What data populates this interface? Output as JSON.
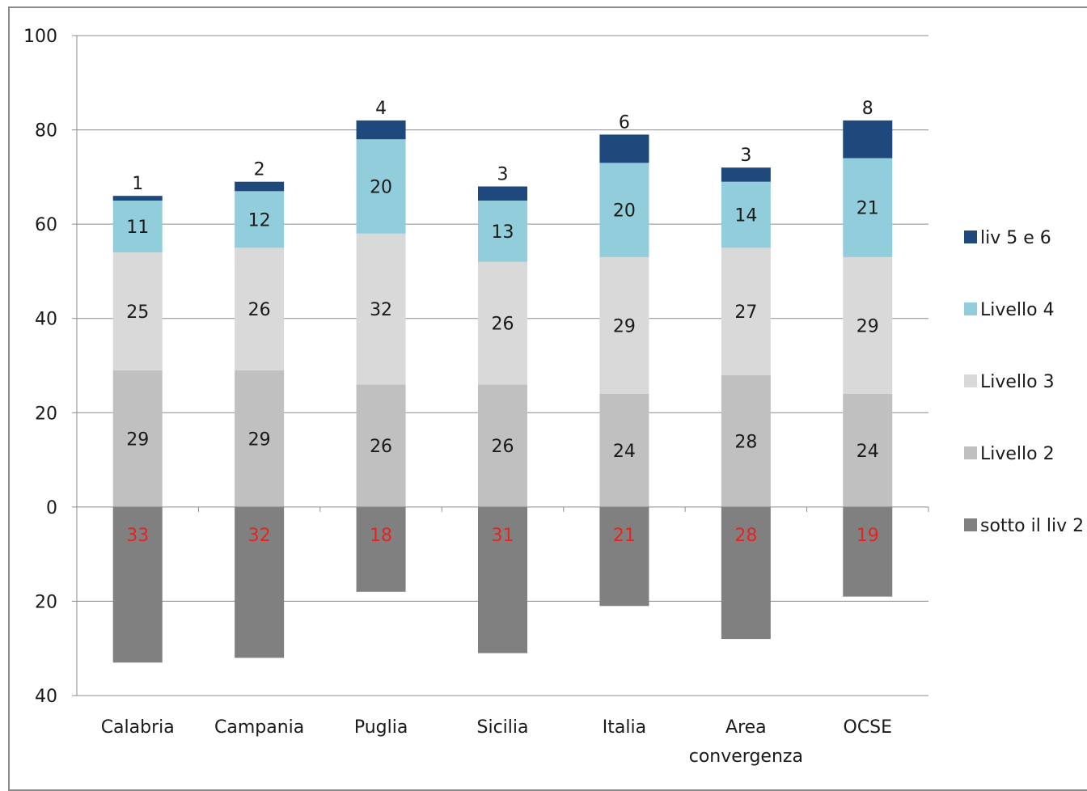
{
  "chart_data": {
    "type": "bar",
    "stacked": true,
    "categories": [
      "Calabria",
      "Campania",
      "Puglia",
      "Sicilia",
      "Italia",
      "Area convergenza",
      "OCSE"
    ],
    "category_lines": [
      [
        "Calabria"
      ],
      [
        "Campania"
      ],
      [
        "Puglia"
      ],
      [
        "Sicilia"
      ],
      [
        "Italia"
      ],
      [
        "Area",
        "convergenza"
      ],
      [
        "OCSE"
      ]
    ],
    "ylim": [
      -40,
      100
    ],
    "yticks": [
      {
        "value": 100,
        "label": "100"
      },
      {
        "value": 80,
        "label": "80"
      },
      {
        "value": 60,
        "label": "60"
      },
      {
        "value": 40,
        "label": "40"
      },
      {
        "value": 20,
        "label": "20"
      },
      {
        "value": 0,
        "label": "0"
      },
      {
        "value": -20,
        "label": "20"
      },
      {
        "value": -40,
        "label": "40"
      }
    ],
    "grid": true,
    "legend_position": "right",
    "series": [
      {
        "name": "sotto il liv 2",
        "direction": "down",
        "color": "#808080",
        "label_color": "#e8231f",
        "values": [
          33,
          32,
          18,
          31,
          21,
          28,
          19
        ]
      },
      {
        "name": "Livello 2",
        "color": "#c0c0c0",
        "label_color": "#1a1a1a",
        "values": [
          29,
          29,
          26,
          26,
          24,
          28,
          24
        ]
      },
      {
        "name": "Livello 3",
        "color": "#d9d9d9",
        "label_color": "#1a1a1a",
        "values": [
          25,
          26,
          32,
          26,
          29,
          27,
          29
        ]
      },
      {
        "name": "Livello 4",
        "color": "#92cddc",
        "label_color": "#1a1a1a",
        "values": [
          11,
          12,
          20,
          13,
          20,
          14,
          21
        ]
      },
      {
        "name": "liv 5 e 6",
        "color": "#1f497d",
        "label_color": "#1a1a1a",
        "values": [
          1,
          2,
          4,
          3,
          6,
          3,
          8
        ]
      }
    ],
    "legend_order": [
      "liv 5 e 6",
      "Livello 4",
      "Livello 3",
      "Livello 2",
      "sotto il liv 2"
    ]
  }
}
